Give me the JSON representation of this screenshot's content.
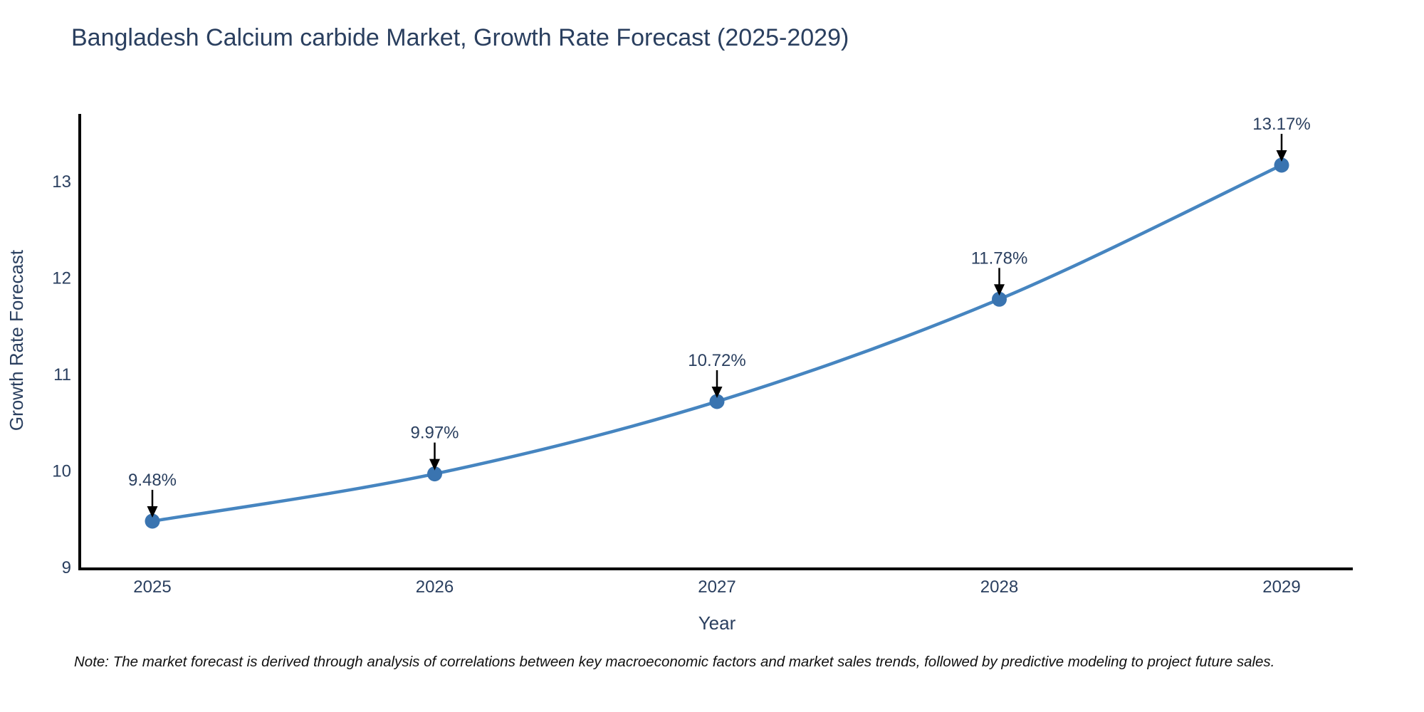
{
  "title": "Bangladesh Calcium carbide Market, Growth Rate Forecast (2025-2029)",
  "note": "Note: The market forecast is derived through analysis of correlations between key macroeconomic factors and market sales trends, followed by predictive modeling to project future sales.",
  "chart_data": {
    "type": "line",
    "title": "Bangladesh Calcium carbide Market, Growth Rate Forecast (2025-2029)",
    "x": [
      2025,
      2026,
      2027,
      2028,
      2029
    ],
    "y": [
      9.48,
      9.97,
      10.72,
      11.78,
      13.17
    ],
    "data_labels": [
      "9.48%",
      "9.97%",
      "10.72%",
      "11.78%",
      "13.17%"
    ],
    "xlabel": "Year",
    "ylabel": "Growth Rate Forecast",
    "x_ticks": [
      "2025",
      "2026",
      "2027",
      "2028",
      "2029"
    ],
    "y_ticks": [
      "9",
      "10",
      "11",
      "12",
      "13"
    ],
    "xlim": [
      2024.74,
      2029.26
    ],
    "ylim": [
      9,
      13.71
    ],
    "grid": false,
    "legend": false,
    "line_shape": "spline",
    "colors": {
      "line": "#4685c0",
      "marker": "#3a74b0",
      "axis": "#000000",
      "text": "#2a3f5f",
      "arrow": "#000000",
      "background": "#ffffff"
    }
  }
}
